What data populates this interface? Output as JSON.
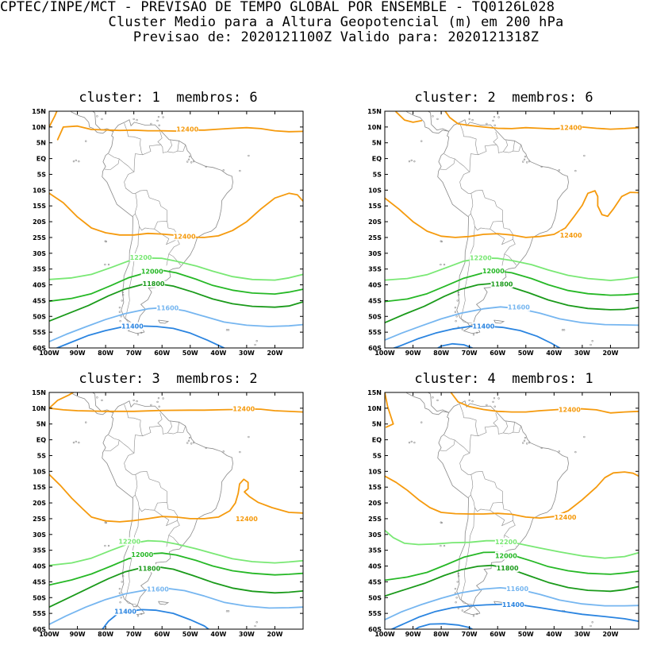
{
  "header": {
    "line1": "CPTEC/INPE/MCT - PREVISAO DE TEMPO GLOBAL POR ENSEMBLE - TQ0126L028",
    "line2": "Cluster Medio para a Altura Geopotencial (m) em 200 hPa",
    "line3": "Previsao de: 2020121100Z   Valido para: 2020121318Z"
  },
  "colors": {
    "c12400": "#f59a0d",
    "c12200": "#79e874",
    "c12000": "#26b826",
    "c11800": "#1a9a1a",
    "c11600": "#76b6f0",
    "c11400": "#2a84e0",
    "land": "#8a8a8a"
  },
  "lat_ticks": [
    "15N",
    "10N",
    "5N",
    "EQ",
    "5S",
    "10S",
    "15S",
    "20S",
    "25S",
    "30S",
    "35S",
    "40S",
    "45S",
    "50S",
    "55S",
    "60S"
  ],
  "lon_ticks": [
    "100W",
    "90W",
    "80W",
    "70W",
    "60W",
    "50W",
    "40W",
    "30W",
    "20W"
  ],
  "panels": [
    {
      "title": "cluster: 1  membros: 6",
      "labels": {
        "12400a": "12400",
        "12400b": "12400",
        "12200": "12200",
        "12000": "12000",
        "11800": "11800",
        "11600": "11600",
        "11400": "11400"
      }
    },
    {
      "title": "cluster: 2  membros: 6",
      "labels": {
        "12400a": "12400",
        "12400b": "12400",
        "12200": "12200",
        "12000": "12000",
        "11800": "11800",
        "11600": "11600",
        "11400": "11400"
      }
    },
    {
      "title": "cluster: 3  membros: 2",
      "labels": {
        "12400a": "12400",
        "12400b": "12400",
        "12200": "12200",
        "12000": "12000",
        "11800": "11800",
        "11600": "11600",
        "11400": "11400"
      }
    },
    {
      "title": "cluster: 4  membros: 1",
      "labels": {
        "12400a": "12400",
        "12400b": "12400",
        "12200": "12200",
        "12000": "12000",
        "11800": "11800",
        "11600": "11600",
        "11400": "11400"
      }
    }
  ]
}
